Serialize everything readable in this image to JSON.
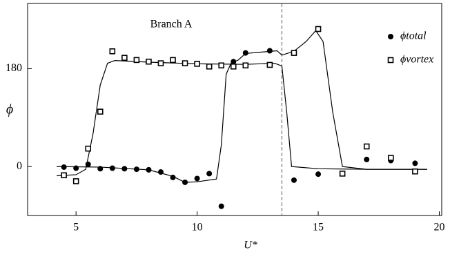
{
  "chart_data": {
    "type": "scatter",
    "annotation": "Branch A",
    "xlabel": "U*",
    "ylabel": "ϕ",
    "xlim": [
      3,
      20.1
    ],
    "ylim": [
      -90,
      300
    ],
    "xticks": [
      5,
      10,
      15,
      20
    ],
    "yticks": [
      0,
      180
    ],
    "vline": 13.5,
    "legend": "upper right",
    "series": [
      {
        "name": "ϕtotal",
        "color": "#000000",
        "marker": "circle",
        "x": [
          4.5,
          5,
          5.5,
          6,
          6.5,
          7,
          7.5,
          8,
          8.5,
          9,
          9.5,
          10,
          10.5,
          11,
          11.5,
          12,
          13,
          14,
          15,
          17,
          18,
          19
        ],
        "values": [
          -1,
          -3,
          4,
          -4,
          -3,
          -4,
          -5,
          -6,
          -10,
          -20,
          -29,
          -22,
          -13,
          -73,
          193,
          209,
          213,
          -25,
          -14,
          13,
          11,
          6
        ]
      },
      {
        "name": "ϕvortex",
        "color": "#000000",
        "marker": "square",
        "x": [
          4.5,
          5,
          5.5,
          6,
          6.5,
          7,
          7.5,
          8,
          8.5,
          9,
          9.5,
          10,
          10.5,
          11,
          11.5,
          12,
          13,
          14,
          15,
          16,
          17,
          18,
          19
        ],
        "values": [
          -16,
          -27,
          33,
          101,
          212,
          200,
          196,
          193,
          190,
          196,
          190,
          189,
          184,
          186,
          184,
          186,
          187,
          209,
          253,
          -13,
          37,
          16,
          -9
        ]
      }
    ],
    "curves": [
      {
        "color": "#000000",
        "x": [
          4.2,
          5,
          5.4,
          5.7,
          6,
          6.3,
          6.6,
          8,
          10,
          12,
          13.2,
          13.5,
          13.7,
          13.9,
          15,
          17,
          19.5
        ],
        "values": [
          -17,
          -15,
          -5,
          60,
          150,
          190,
          195,
          192,
          189,
          188,
          190,
          185,
          100,
          0,
          -4,
          -5,
          -5
        ]
      },
      {
        "color": "#000000",
        "x": [
          4.2,
          6,
          8,
          9,
          9.5,
          10,
          10.8,
          11,
          11.2,
          11.4,
          11.7,
          12,
          13.3,
          13.5,
          14,
          14.5,
          14.9,
          15.2,
          15.6,
          16,
          17,
          19.5
        ],
        "values": [
          0,
          -1,
          -6,
          -18,
          -29,
          -28,
          -23,
          40,
          170,
          190,
          196,
          208,
          213,
          205,
          212,
          230,
          250,
          230,
          100,
          0,
          -5,
          -5
        ]
      }
    ]
  }
}
